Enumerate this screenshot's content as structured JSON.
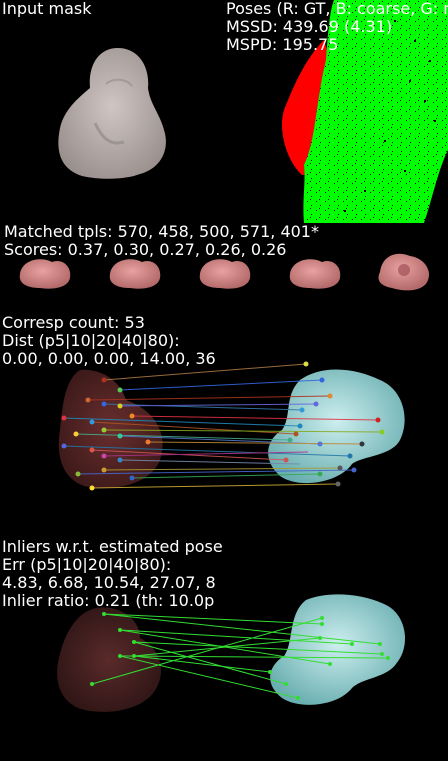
{
  "input_mask": {
    "title": "Input mask"
  },
  "poses": {
    "title": "Poses (R: GT, B: coarse, G: r",
    "mssd": "MSSD: 439.69 (4.31)",
    "mspd": "MSPD: 195.75",
    "colors": {
      "gt": "#ff0000",
      "coarse": "#0000ff",
      "refined": "#00ff00"
    }
  },
  "templates": {
    "matched": "Matched tpls: 570, 458, 500, 571, 401*",
    "scores": "Scores: 0.37, 0.30, 0.27, 0.26, 0.26",
    "count": 5
  },
  "correspondences": {
    "count_line": "Corresp count: 53",
    "dist_label": "Dist (p5|10|20|40|80):",
    "dist_values": "0.00, 0.00, 0.00, 14.00, 36"
  },
  "inliers": {
    "title": "Inliers w.r.t. estimated pose",
    "err_label": "Err (p5|10|20|40|80):",
    "err_values": "4.83, 6.68, 10.54, 27.07, 8",
    "ratio": "Inlier ratio: 0.21 (th: 10.0p",
    "line_color": "#33dd33"
  }
}
